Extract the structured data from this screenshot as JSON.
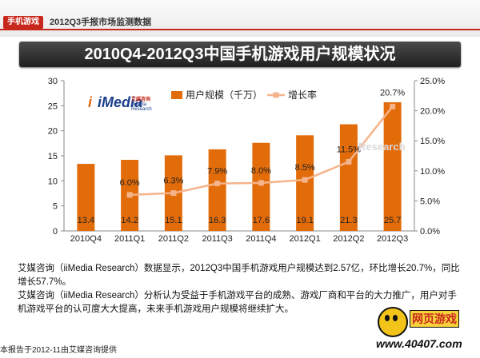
{
  "header": {
    "tag": "手机游戏",
    "subtitle": "2012Q3手报市场监测数据"
  },
  "logo": {
    "mark_i": "i",
    "mark_media": "iMedia",
    "cn": "艾媒咨询",
    "en": "iiMedia Research"
  },
  "watermark": {
    "research": "Research",
    "brand": "网页游戏",
    "site": "www.40407.com"
  },
  "colors": {
    "bar": "#e36c0a",
    "line": "#f5b38a",
    "accent_red": "#c8281c"
  },
  "chart_data": {
    "type": "bar",
    "title": "2010Q4-2012Q3中国手机游戏用户规模状况",
    "categories": [
      "2010Q4",
      "2011Q1",
      "2011Q2",
      "2011Q3",
      "2011Q4",
      "2012Q1",
      "2012Q2",
      "2012Q3"
    ],
    "series": [
      {
        "name": "用户规模（千万）",
        "type": "bar",
        "axis": "left",
        "values": [
          13.4,
          14.2,
          15.1,
          16.3,
          17.6,
          19.1,
          21.3,
          25.7
        ],
        "labels": [
          "13.4",
          "14.2",
          "15.1",
          "16.3",
          "17.6",
          "19.1",
          "21.3",
          "25.7"
        ]
      },
      {
        "name": "增长率",
        "type": "line",
        "axis": "right",
        "values": [
          null,
          6.0,
          6.3,
          7.9,
          8.0,
          8.5,
          11.5,
          20.7
        ],
        "labels": [
          "",
          "6.0%",
          "6.3%",
          "7.9%",
          "8.0%",
          "8.5%",
          "11.5%",
          "20.7%"
        ]
      }
    ],
    "y_left": {
      "min": 0,
      "max": 30,
      "ticks": [
        "0",
        "5",
        "10",
        "15",
        "20",
        "25",
        "30"
      ]
    },
    "y_right": {
      "min": 0,
      "max": 25,
      "ticks": [
        "0.0%",
        "5.0%",
        "10.0%",
        "15.0%",
        "20.0%",
        "25.0%"
      ]
    },
    "legend": {
      "position": "top"
    },
    "grid": false
  },
  "description": {
    "p1": "艾媒咨询（iiMedia Research）数据显示，2012Q3中国手机游戏用户规模达到2.57亿，环比增长20.7%，同比增长57.7%。",
    "p2": "艾媒咨询（iiMedia Research）分析认为受益于手机游戏平台的成熟、游戏厂商和平台的大力推广，用户对手机游戏平台的认可度大大提高，未来手机游戏用户规模将继续扩大。"
  },
  "footer": "本报告于2012-11由艾媒咨询提供"
}
